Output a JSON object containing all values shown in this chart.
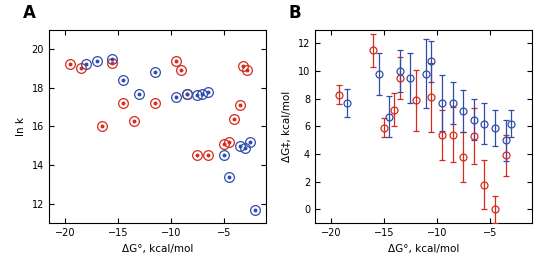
{
  "panel_A": {
    "red_x": [
      -19.5,
      -18.5,
      -16.5,
      -15.5,
      -14.5,
      -13.5,
      -11.5,
      -9.5,
      -9.0,
      -8.5,
      -7.5,
      -6.5,
      -5.0,
      -4.5,
      -4.0,
      -3.5,
      -3.2,
      -2.8
    ],
    "red_y": [
      19.2,
      19.0,
      16.0,
      19.3,
      17.2,
      16.3,
      17.2,
      19.4,
      18.9,
      17.7,
      14.5,
      14.5,
      15.1,
      15.2,
      16.4,
      17.1,
      19.1,
      18.9
    ],
    "blue_x": [
      -18.0,
      -17.0,
      -15.5,
      -14.5,
      -13.0,
      -11.5,
      -9.5,
      -8.5,
      -7.5,
      -7.0,
      -6.5,
      -5.0,
      -4.5,
      -3.5,
      -3.0,
      -2.5,
      -2.0
    ],
    "blue_y": [
      19.2,
      19.4,
      19.5,
      18.4,
      17.7,
      18.8,
      17.5,
      17.7,
      17.6,
      17.7,
      17.8,
      14.5,
      13.4,
      15.0,
      14.9,
      15.2,
      11.7
    ],
    "xlim": [
      -21.5,
      -1.0
    ],
    "ylim": [
      11.0,
      21.0
    ],
    "yticks": [
      12,
      14,
      16,
      18,
      20
    ],
    "xticks": [
      -20,
      -15,
      -10,
      -5
    ],
    "xlabel": "ΔG°, kcal/mol",
    "ylabel": "ln k",
    "label": "A"
  },
  "panel_B": {
    "red_x": [
      -19.2,
      -16.0,
      -15.0,
      -14.0,
      -13.5,
      -12.0,
      -10.5,
      -9.5,
      -8.5,
      -7.5,
      -6.5,
      -5.5,
      -4.5,
      -3.5
    ],
    "red_y": [
      8.3,
      11.5,
      5.9,
      7.2,
      9.5,
      7.9,
      8.1,
      5.4,
      5.4,
      3.8,
      5.3,
      1.8,
      0.0,
      3.9
    ],
    "red_yerr": [
      0.7,
      1.2,
      0.7,
      1.2,
      1.5,
      2.2,
      2.5,
      1.8,
      2.0,
      1.8,
      2.0,
      1.8,
      1.0,
      1.5
    ],
    "blue_x": [
      -18.5,
      -15.5,
      -14.5,
      -13.5,
      -12.5,
      -11.0,
      -10.5,
      -9.5,
      -8.5,
      -7.5,
      -6.5,
      -5.5,
      -4.5,
      -3.5,
      -3.0
    ],
    "blue_y": [
      7.7,
      9.8,
      6.7,
      10.0,
      9.5,
      9.8,
      10.7,
      7.7,
      7.7,
      7.1,
      6.5,
      6.2,
      5.9,
      5.0,
      6.2
    ],
    "blue_yerr": [
      1.0,
      1.5,
      1.5,
      1.5,
      1.8,
      2.5,
      1.5,
      2.0,
      1.5,
      1.5,
      1.5,
      1.5,
      1.3,
      1.5,
      1.0
    ],
    "xlim": [
      -21.5,
      -1.0
    ],
    "ylim": [
      -1.0,
      13.0
    ],
    "yticks": [
      0,
      2,
      4,
      6,
      8,
      10,
      12
    ],
    "xticks": [
      -20,
      -15,
      -10,
      -5
    ],
    "xlabel": "ΔG°, kcal/mol",
    "ylabel": "ΔG‡, kcal/mol",
    "label": "B"
  },
  "red_color": "#d42b1e",
  "blue_color": "#2f4eaa",
  "circle_markersize": 7,
  "dot_markersize": 1.8,
  "eb_markersize": 5,
  "figsize": [
    5.43,
    2.69
  ],
  "dpi": 100
}
